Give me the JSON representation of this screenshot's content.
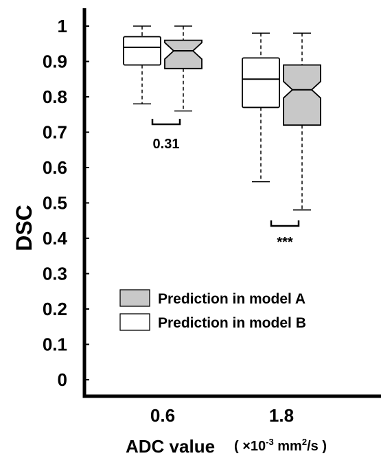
{
  "chart_data": {
    "type": "box",
    "ylabel": "DSC",
    "xlabel": "ADC value",
    "xlabel_unit": {
      "prefix": "( ×10",
      "exp": "-3",
      "mid": " mm",
      "exp2": "2",
      "suffix": "/s )"
    },
    "ylim": [
      0,
      1
    ],
    "yticks": [
      "0",
      "0.1",
      "0.2",
      "0.3",
      "0.4",
      "0.5",
      "0.6",
      "0.7",
      "0.8",
      "0.9",
      "1"
    ],
    "categories": [
      "0.6",
      "1.8"
    ],
    "series": [
      {
        "name": "Prediction in model B",
        "color": "#ffffff",
        "notched": false,
        "boxes": [
          {
            "whisker_low": 0.78,
            "q1": 0.89,
            "median": 0.94,
            "q3": 0.97,
            "whisker_high": 1.0
          },
          {
            "whisker_low": 0.56,
            "q1": 0.77,
            "median": 0.85,
            "q3": 0.91,
            "whisker_high": 0.98
          }
        ]
      },
      {
        "name": "Prediction in model A",
        "color": "#c8c8c8",
        "notched": true,
        "boxes": [
          {
            "whisker_low": 0.76,
            "q1": 0.88,
            "median": 0.93,
            "q3": 0.96,
            "whisker_high": 1.0
          },
          {
            "whisker_low": 0.48,
            "q1": 0.72,
            "median": 0.82,
            "q3": 0.89,
            "whisker_high": 0.98
          }
        ]
      }
    ],
    "legend": {
      "placement": "bottom-center",
      "entries": [
        "Prediction in model A",
        "Prediction in model B"
      ]
    },
    "annotations": [
      {
        "category": "0.6",
        "text": "0.31"
      },
      {
        "category": "1.8",
        "text": "***"
      }
    ],
    "grid": false
  }
}
